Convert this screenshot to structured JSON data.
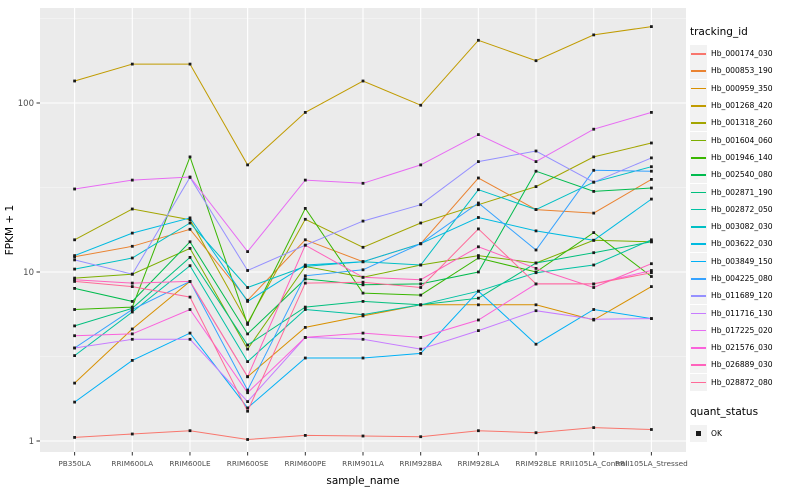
{
  "chart_data": {
    "type": "line",
    "title": "",
    "xlabel": "sample_name",
    "ylabel": "FPKM + 1",
    "y_scale": "log10",
    "y_ticks": [
      "1",
      "10",
      "100"
    ],
    "y_tick_values": [
      1,
      10,
      100
    ],
    "y_minor_tick_values": [
      3.1623,
      31.623,
      316.23
    ],
    "ylim": [
      0.86,
      370
    ],
    "grid": "on",
    "legend_position": "right",
    "panel_background": "#EBEBEB",
    "gridline_color": "#FFFFFF",
    "tick_label_color": "#4D4D4D",
    "axis_title_color": "#000000",
    "point_color": "#1a1a1a",
    "categories": [
      "PB350LA",
      "RRIM600LA",
      "RRIM600LE",
      "RRIM600SE",
      "RRIM600PE",
      "RRIM901LA",
      "RRIM928BA",
      "RRIM928LA",
      "RRIM928LE",
      "RRII105LA_Control",
      "RRII105LA_Stressed"
    ],
    "color_legend_title": "tracking_id",
    "shape_legend_title": "quant_status",
    "shape_legend_item": "OK",
    "series": [
      {
        "name": "Hb_000174_030",
        "color": "#F8766D",
        "values": [
          1.05,
          1.1,
          1.15,
          1.02,
          1.08,
          1.07,
          1.06,
          1.15,
          1.12,
          1.2,
          1.17
        ]
      },
      {
        "name": "Hb_000853_190",
        "color": "#EA8331",
        "values": [
          12.3,
          14.2,
          17.9,
          6.8,
          15.5,
          11.5,
          14.7,
          36,
          23.4,
          22.3,
          35.3
        ]
      },
      {
        "name": "Hb_000959_350",
        "color": "#D89000",
        "values": [
          2.2,
          4.6,
          8.8,
          2.4,
          4.7,
          5.5,
          6.4,
          6.4,
          6.4,
          5.2,
          8.2
        ]
      },
      {
        "name": "Hb_001268_420",
        "color": "#C09B00",
        "values": [
          135,
          170,
          170,
          43,
          88,
          135,
          97,
          235,
          178,
          253,
          283
        ]
      },
      {
        "name": "Hb_001318_260",
        "color": "#A3A500",
        "values": [
          15.5,
          23.6,
          20.4,
          5.0,
          20.5,
          14,
          19.5,
          25,
          32,
          48,
          58
        ]
      },
      {
        "name": "Hb_001604_060",
        "color": "#7CAE00",
        "values": [
          9.2,
          9.7,
          13.8,
          3.5,
          10.8,
          9.3,
          11.0,
          12.5,
          11.3,
          15.4,
          15.1
        ]
      },
      {
        "name": "Hb_001946_140",
        "color": "#39B600",
        "values": [
          6.0,
          6.2,
          48,
          4.9,
          23.8,
          7.5,
          7.3,
          12.1,
          10,
          17.1,
          9.4
        ]
      },
      {
        "name": "Hb_002540_080",
        "color": "#00BB4E",
        "values": [
          8.0,
          6.7,
          15.1,
          4.3,
          9.1,
          8.4,
          8.5,
          10,
          39.5,
          30,
          31.4
        ]
      },
      {
        "name": "Hb_002871_190",
        "color": "#00BF7D",
        "values": [
          4.8,
          6.1,
          12.2,
          3.7,
          6.2,
          6.7,
          6.4,
          7.0,
          11.3,
          13.0,
          15.1
        ]
      },
      {
        "name": "Hb_002872_050",
        "color": "#00C1A3",
        "values": [
          3.2,
          5.8,
          10.9,
          2.95,
          6.0,
          5.6,
          6.4,
          7.7,
          9.9,
          11.0,
          15.5
        ]
      },
      {
        "name": "Hb_003082_030",
        "color": "#00BFC4",
        "values": [
          10.4,
          12.1,
          19.5,
          8.1,
          10.8,
          11.5,
          11.0,
          30.7,
          23.4,
          34,
          42
        ]
      },
      {
        "name": "Hb_003622_030",
        "color": "#00BAE0",
        "values": [
          12.5,
          17.0,
          20.9,
          6.7,
          11.0,
          11.5,
          14.7,
          21,
          17.5,
          15.4,
          27
        ]
      },
      {
        "name": "Hb_003849_150",
        "color": "#00B0F6",
        "values": [
          1.7,
          3.0,
          4.35,
          1.57,
          3.1,
          3.1,
          3.3,
          7.7,
          3.74,
          6.0,
          5.3
        ]
      },
      {
        "name": "Hb_004225_080",
        "color": "#35A2FF",
        "values": [
          3.55,
          6.0,
          8.8,
          2.0,
          9.5,
          10.3,
          14.7,
          25.6,
          13.5,
          40,
          39.5
        ]
      },
      {
        "name": "Hb_011689_120",
        "color": "#9590FF",
        "values": [
          11.8,
          9.7,
          36.3,
          10.2,
          14.4,
          20,
          25,
          45,
          52,
          34,
          47.3
        ]
      },
      {
        "name": "Hb_011716_130",
        "color": "#C77CFF",
        "values": [
          3.55,
          4.0,
          4.0,
          1.71,
          4.1,
          4.0,
          3.5,
          4.5,
          5.9,
          5.25,
          5.3
        ]
      },
      {
        "name": "Hb_017225_020",
        "color": "#E76BF3",
        "values": [
          31,
          35,
          36.5,
          13.2,
          35,
          33.5,
          43,
          65,
          45,
          70,
          88
        ]
      },
      {
        "name": "Hb_021576_030",
        "color": "#FA62DB",
        "values": [
          4.2,
          4.3,
          6.0,
          1.93,
          4.1,
          4.35,
          4.1,
          5.2,
          8.5,
          8.5,
          10.2
        ]
      },
      {
        "name": "Hb_026889_030",
        "color": "#FF62BC",
        "values": [
          9.0,
          8.6,
          8.8,
          2.4,
          14.4,
          9.3,
          9.0,
          14.1,
          10.5,
          8.1,
          11.2
        ]
      },
      {
        "name": "Hb_028872_080",
        "color": "#FF6A98",
        "values": [
          8.8,
          8.2,
          7.1,
          1.5,
          8.6,
          8.7,
          8.1,
          18,
          8.5,
          8.5,
          9.9
        ]
      }
    ]
  }
}
